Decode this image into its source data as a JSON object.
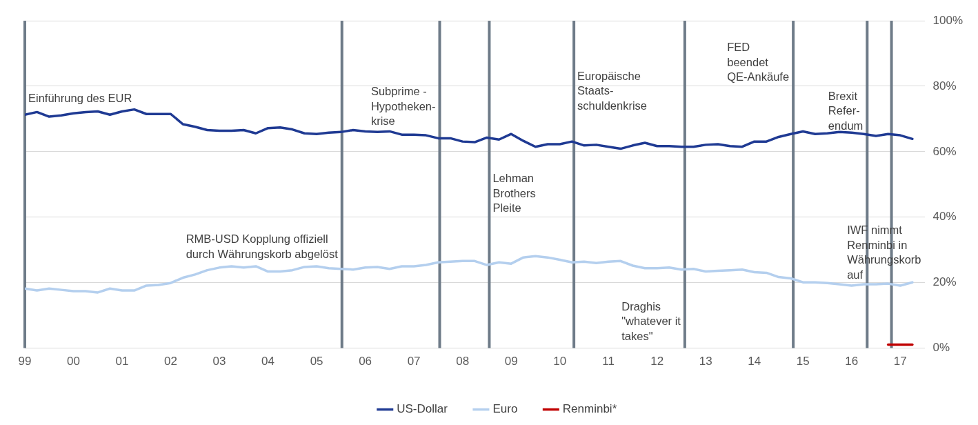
{
  "chart_data": {
    "type": "line",
    "xlim": [
      1999,
      2017.5
    ],
    "xticks": [
      {
        "value": 1999,
        "label": "99"
      },
      {
        "value": 2000,
        "label": "00"
      },
      {
        "value": 2001,
        "label": "01"
      },
      {
        "value": 2002,
        "label": "02"
      },
      {
        "value": 2003,
        "label": "03"
      },
      {
        "value": 2004,
        "label": "04"
      },
      {
        "value": 2005,
        "label": "05"
      },
      {
        "value": 2006,
        "label": "06"
      },
      {
        "value": 2007,
        "label": "07"
      },
      {
        "value": 2008,
        "label": "08"
      },
      {
        "value": 2009,
        "label": "09"
      },
      {
        "value": 2010,
        "label": "10"
      },
      {
        "value": 2011,
        "label": "11"
      },
      {
        "value": 2012,
        "label": "12"
      },
      {
        "value": 2013,
        "label": "13"
      },
      {
        "value": 2014,
        "label": "14"
      },
      {
        "value": 2015,
        "label": "15"
      },
      {
        "value": 2016,
        "label": "16"
      },
      {
        "value": 2017,
        "label": "17"
      }
    ],
    "ylim": [
      0,
      100
    ],
    "yticks": [
      {
        "value": 0,
        "label": "0%"
      },
      {
        "value": 20,
        "label": "20%"
      },
      {
        "value": 40,
        "label": "40%"
      },
      {
        "value": 60,
        "label": "60%"
      },
      {
        "value": 80,
        "label": "80%"
      },
      {
        "value": 100,
        "label": "100%"
      }
    ],
    "grid": "y",
    "legend": "bottom",
    "marker": "none",
    "line_style": "solid",
    "x": [
      1999,
      1999.25,
      1999.5,
      1999.75,
      2000,
      2000.25,
      2000.5,
      2000.75,
      2001,
      2001.25,
      2001.5,
      2001.75,
      2002,
      2002.25,
      2002.5,
      2002.75,
      2003,
      2003.25,
      2003.5,
      2003.75,
      2004,
      2004.25,
      2004.5,
      2004.75,
      2005,
      2005.25,
      2005.5,
      2005.75,
      2006,
      2006.25,
      2006.5,
      2006.75,
      2007,
      2007.25,
      2007.5,
      2007.75,
      2008,
      2008.25,
      2008.5,
      2008.75,
      2009,
      2009.25,
      2009.5,
      2009.75,
      2010,
      2010.25,
      2010.5,
      2010.75,
      2011,
      2011.25,
      2011.5,
      2011.75,
      2012,
      2012.25,
      2012.5,
      2012.75,
      2013,
      2013.25,
      2013.5,
      2013.75,
      2014,
      2014.25,
      2014.5,
      2014.75,
      2015,
      2015.25,
      2015.5,
      2015.75,
      2016,
      2016.25,
      2016.5,
      2016.75,
      2017,
      2017.25
    ],
    "series": [
      {
        "name": "US-Dollar",
        "color": "#1f3a93",
        "values": [
          71.3,
          72.1,
          70.7,
          71.1,
          71.7,
          72.1,
          72.3,
          71.3,
          72.3,
          72.9,
          71.5,
          71.5,
          71.5,
          68.4,
          67.6,
          66.6,
          66.4,
          66.4,
          66.6,
          65.6,
          67.2,
          67.4,
          66.8,
          65.6,
          65.4,
          65.8,
          66.0,
          66.6,
          66.2,
          66.0,
          66.2,
          65.2,
          65.2,
          65.0,
          64.1,
          64.1,
          63.1,
          62.9,
          64.3,
          63.7,
          65.4,
          63.3,
          61.5,
          62.3,
          62.3,
          63.1,
          61.9,
          62.1,
          61.5,
          60.9,
          61.9,
          62.7,
          61.7,
          61.7,
          61.5,
          61.5,
          62.1,
          62.3,
          61.7,
          61.5,
          63.1,
          63.1,
          64.5,
          65.4,
          66.2,
          65.4,
          65.6,
          66.0,
          65.8,
          65.4,
          64.8,
          65.4,
          65.0,
          63.9
        ]
      },
      {
        "name": "Euro",
        "color": "#b4cfee",
        "values": [
          18.2,
          17.6,
          18.2,
          17.8,
          17.4,
          17.4,
          17.0,
          18.2,
          17.6,
          17.6,
          19.1,
          19.3,
          19.9,
          21.5,
          22.5,
          23.8,
          24.6,
          25.0,
          24.6,
          25.0,
          23.4,
          23.4,
          23.8,
          24.8,
          25.0,
          24.4,
          24.2,
          24.0,
          24.6,
          24.8,
          24.2,
          25.0,
          25.0,
          25.4,
          26.2,
          26.4,
          26.6,
          26.6,
          25.4,
          26.2,
          25.8,
          27.7,
          28.1,
          27.7,
          27.0,
          26.2,
          26.4,
          26.0,
          26.4,
          26.6,
          25.2,
          24.4,
          24.4,
          24.6,
          24.0,
          24.2,
          23.4,
          23.6,
          23.8,
          24.0,
          23.2,
          23.0,
          21.7,
          21.3,
          20.1,
          20.1,
          19.9,
          19.5,
          19.1,
          19.5,
          19.5,
          19.7,
          19.1,
          20.1
        ]
      },
      {
        "name": "Renminbi*",
        "color": "#c00000",
        "x": [
          2016.75,
          2017.25
        ],
        "values": [
          1.1,
          1.1
        ]
      }
    ],
    "ref_lines": [
      {
        "axis": "x",
        "value": 1999,
        "color": "#6e7b88"
      },
      {
        "axis": "x",
        "value": 2005.52,
        "color": "#6e7b88"
      },
      {
        "axis": "x",
        "value": 2007.53,
        "color": "#6e7b88"
      },
      {
        "axis": "x",
        "value": 2008.55,
        "color": "#6e7b88"
      },
      {
        "axis": "x",
        "value": 2010.29,
        "color": "#6e7b88"
      },
      {
        "axis": "x",
        "value": 2012.57,
        "color": "#6e7b88"
      },
      {
        "axis": "x",
        "value": 2014.8,
        "color": "#6e7b88"
      },
      {
        "axis": "x",
        "value": 2016.32,
        "color": "#6e7b88"
      },
      {
        "axis": "x",
        "value": 2016.82,
        "color": "#6e7b88"
      }
    ],
    "annotations": [
      {
        "text": "Einführung des EUR",
        "x": 1999,
        "y": 77.9
      },
      {
        "text": "RMB-USD Kopplung offiziell\ndurch Währungskorb abgelöst",
        "x": 2005.52,
        "y": 34.8
      },
      {
        "text": "Subprime -\nHypotheken-\nkrise",
        "x": 2007.53,
        "y": 79.9
      },
      {
        "text": "Lehman\nBrothers\nPleite",
        "x": 2008.55,
        "y": 53.3
      },
      {
        "text": "Europäische\nStaats-\nschuldenkrise",
        "x": 2010.29,
        "y": 84.6
      },
      {
        "text": "Draghis\n\"whatever it\ntakes\"",
        "x": 2012.57,
        "y": 14.3
      },
      {
        "text": "FED\nbeendet\nQE-Ankäufe",
        "x": 2014.8,
        "y": 93.4
      },
      {
        "text": "Brexit\nRefer-\nendum",
        "x": 2016.32,
        "y": 78.5
      },
      {
        "text": "IWF nimmt\nRenminbi in\nWährungskorb\nauf",
        "x": 2016.82,
        "y": 37.5
      }
    ]
  }
}
